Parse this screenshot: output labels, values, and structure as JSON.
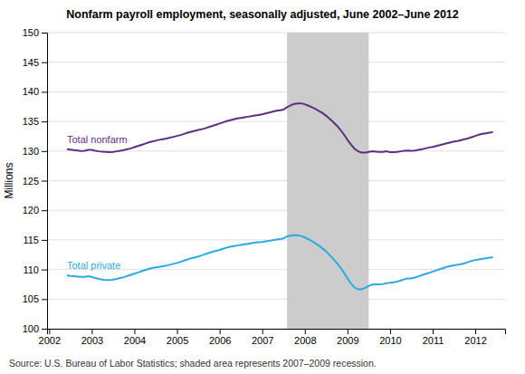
{
  "chart_data": {
    "type": "line",
    "title": "Nonfarm payroll employment, seasonally adjusted, June 2002–June 2012",
    "y_label": "Millions",
    "annotations": [
      "Source: U.S. Bureau of Labor Statistics; shaded area represents 2007–2009 recession."
    ],
    "spans": [
      {
        "start": 2007.583,
        "end": 2009.5,
        "color": "#cccccc"
      }
    ],
    "xlim": [
      2001.95,
      2012.7
    ],
    "xticks": [
      2002,
      2003,
      2004,
      2005,
      2006,
      2007,
      2008,
      2009,
      2010,
      2011,
      2012
    ],
    "ylim": [
      100,
      150
    ],
    "yticks": [
      100,
      105,
      110,
      115,
      120,
      125,
      130,
      135,
      140,
      145,
      150
    ],
    "grid": true,
    "x": [
      2002.417,
      2002.5,
      2002.583,
      2002.667,
      2002.75,
      2002.833,
      2002.917,
      2003.0,
      2003.083,
      2003.167,
      2003.25,
      2003.333,
      2003.417,
      2003.5,
      2003.583,
      2003.667,
      2003.75,
      2003.833,
      2003.917,
      2004.0,
      2004.083,
      2004.167,
      2004.25,
      2004.333,
      2004.417,
      2004.5,
      2004.583,
      2004.667,
      2004.75,
      2004.833,
      2004.917,
      2005.0,
      2005.083,
      2005.167,
      2005.25,
      2005.333,
      2005.417,
      2005.5,
      2005.583,
      2005.667,
      2005.75,
      2005.833,
      2005.917,
      2006.0,
      2006.083,
      2006.167,
      2006.25,
      2006.333,
      2006.417,
      2006.5,
      2006.583,
      2006.667,
      2006.75,
      2006.833,
      2006.917,
      2007.0,
      2007.083,
      2007.167,
      2007.25,
      2007.333,
      2007.417,
      2007.5,
      2007.583,
      2007.667,
      2007.75,
      2007.833,
      2007.917,
      2008.0,
      2008.083,
      2008.167,
      2008.25,
      2008.333,
      2008.417,
      2008.5,
      2008.583,
      2008.667,
      2008.75,
      2008.833,
      2008.917,
      2009.0,
      2009.083,
      2009.167,
      2009.25,
      2009.333,
      2009.417,
      2009.5,
      2009.583,
      2009.667,
      2009.75,
      2009.833,
      2009.917,
      2010.0,
      2010.083,
      2010.167,
      2010.25,
      2010.333,
      2010.417,
      2010.5,
      2010.583,
      2010.667,
      2010.75,
      2010.833,
      2010.917,
      2011.0,
      2011.083,
      2011.167,
      2011.25,
      2011.333,
      2011.417,
      2011.5,
      2011.583,
      2011.667,
      2011.75,
      2011.833,
      2011.917,
      2012.0,
      2012.083,
      2012.167,
      2012.25,
      2012.333,
      2012.417
    ],
    "series": [
      {
        "name": "Total nonfarm",
        "color": "#5b3080",
        "values": [
          130.3,
          130.25,
          130.15,
          130.1,
          130.0,
          130.05,
          130.2,
          130.2,
          130.05,
          129.95,
          129.9,
          129.85,
          129.8,
          129.85,
          129.95,
          130.05,
          130.15,
          130.3,
          130.45,
          130.65,
          130.85,
          131.05,
          131.25,
          131.45,
          131.6,
          131.75,
          131.9,
          132.0,
          132.1,
          132.25,
          132.4,
          132.55,
          132.7,
          132.9,
          133.1,
          133.25,
          133.4,
          133.55,
          133.7,
          133.85,
          134.05,
          134.25,
          134.45,
          134.65,
          134.85,
          135.05,
          135.2,
          135.35,
          135.5,
          135.6,
          135.7,
          135.8,
          135.9,
          136.0,
          136.1,
          136.2,
          136.35,
          136.5,
          136.65,
          136.8,
          136.9,
          137.0,
          137.4,
          137.7,
          137.95,
          138.05,
          138.05,
          137.9,
          137.65,
          137.4,
          137.1,
          136.75,
          136.4,
          135.95,
          135.45,
          134.9,
          134.3,
          133.6,
          132.8,
          131.9,
          131.1,
          130.4,
          129.95,
          129.75,
          129.75,
          129.85,
          129.95,
          129.9,
          129.85,
          129.85,
          129.95,
          129.8,
          129.8,
          129.85,
          129.95,
          130.05,
          130.1,
          130.05,
          130.1,
          130.2,
          130.3,
          130.45,
          130.6,
          130.7,
          130.85,
          131.0,
          131.15,
          131.3,
          131.45,
          131.6,
          131.7,
          131.85,
          132.0,
          132.15,
          132.35,
          132.55,
          132.75,
          132.9,
          133.0,
          133.1,
          133.2
        ]
      },
      {
        "name": "Total private",
        "color": "#29abe2",
        "values": [
          109.0,
          108.9,
          108.85,
          108.8,
          108.75,
          108.75,
          108.85,
          108.75,
          108.55,
          108.4,
          108.3,
          108.2,
          108.2,
          108.3,
          108.4,
          108.55,
          108.7,
          108.9,
          109.1,
          109.3,
          109.5,
          109.7,
          109.9,
          110.1,
          110.25,
          110.35,
          110.45,
          110.55,
          110.65,
          110.8,
          110.95,
          111.1,
          111.3,
          111.5,
          111.7,
          111.9,
          112.05,
          112.2,
          112.4,
          112.6,
          112.8,
          113.0,
          113.15,
          113.3,
          113.5,
          113.7,
          113.85,
          113.95,
          114.05,
          114.15,
          114.25,
          114.35,
          114.45,
          114.55,
          114.6,
          114.65,
          114.75,
          114.85,
          114.95,
          115.05,
          115.15,
          115.25,
          115.6,
          115.7,
          115.8,
          115.8,
          115.65,
          115.4,
          115.1,
          114.8,
          114.4,
          114.0,
          113.55,
          113.05,
          112.45,
          111.8,
          111.1,
          110.35,
          109.5,
          108.5,
          107.65,
          106.95,
          106.65,
          106.65,
          106.9,
          107.2,
          107.45,
          107.5,
          107.5,
          107.55,
          107.7,
          107.75,
          107.85,
          107.95,
          108.15,
          108.35,
          108.5,
          108.5,
          108.65,
          108.85,
          109.05,
          109.25,
          109.45,
          109.65,
          109.85,
          110.05,
          110.25,
          110.45,
          110.6,
          110.7,
          110.8,
          110.9,
          111.05,
          111.25,
          111.45,
          111.6,
          111.7,
          111.8,
          111.9,
          112.0,
          112.05
        ]
      }
    ]
  }
}
